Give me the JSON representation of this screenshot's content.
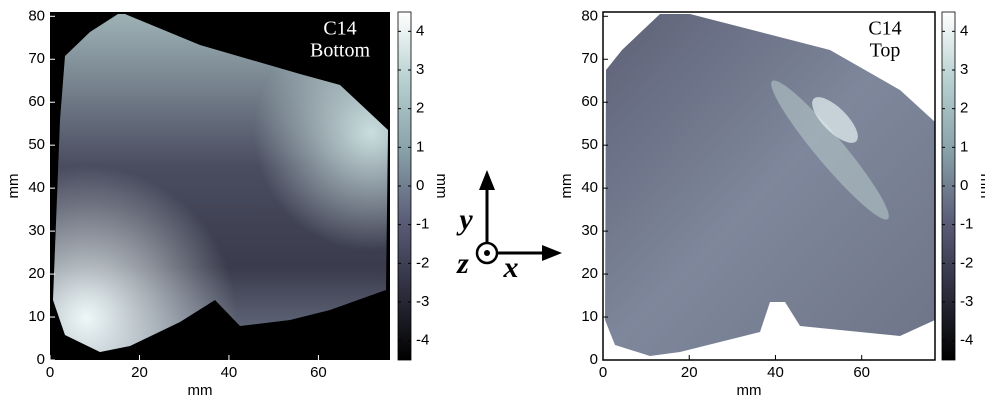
{
  "chart_data": [
    {
      "type": "heatmap",
      "annotation": [
        "C14",
        "Bottom"
      ],
      "annotation_color": "#ffffff",
      "background": "#000000",
      "xlabel": "mm",
      "ylabel": "mm",
      "colorbar_label": "mm",
      "xlim": [
        0,
        76
      ],
      "ylim": [
        0,
        81
      ],
      "xticks": [
        0,
        20,
        40,
        60
      ],
      "yticks": [
        0,
        10,
        20,
        30,
        40,
        50,
        60,
        70,
        80
      ],
      "clim": [
        -4.5,
        4.5
      ],
      "cticks": [
        -4,
        -3,
        -2,
        -1,
        0,
        1,
        2,
        3,
        4
      ],
      "colormap": [
        "#000000",
        "#2e2e3f",
        "#5b5d78",
        "#88a0a8",
        "#b6cfcf",
        "#ffffff"
      ]
    },
    {
      "type": "heatmap",
      "annotation": [
        "C14",
        "Top"
      ],
      "annotation_color": "#000000",
      "background": "#ffffff",
      "xlabel": "mm",
      "ylabel": "mm",
      "colorbar_label": "mm",
      "xlim": [
        0,
        77
      ],
      "ylim": [
        0,
        81
      ],
      "xticks": [
        0,
        20,
        40,
        60
      ],
      "yticks": [
        0,
        10,
        20,
        30,
        40,
        50,
        60,
        70,
        80
      ],
      "clim": [
        -4.5,
        4.5
      ],
      "cticks": [
        -4,
        -3,
        -2,
        -1,
        0,
        1,
        2,
        3,
        4
      ],
      "colormap": [
        "#000000",
        "#2e2e3f",
        "#5b5d78",
        "#88a0a8",
        "#b6cfcf",
        "#ffffff"
      ]
    }
  ],
  "axes_icon": {
    "labels": [
      "y",
      "z",
      "x"
    ]
  }
}
